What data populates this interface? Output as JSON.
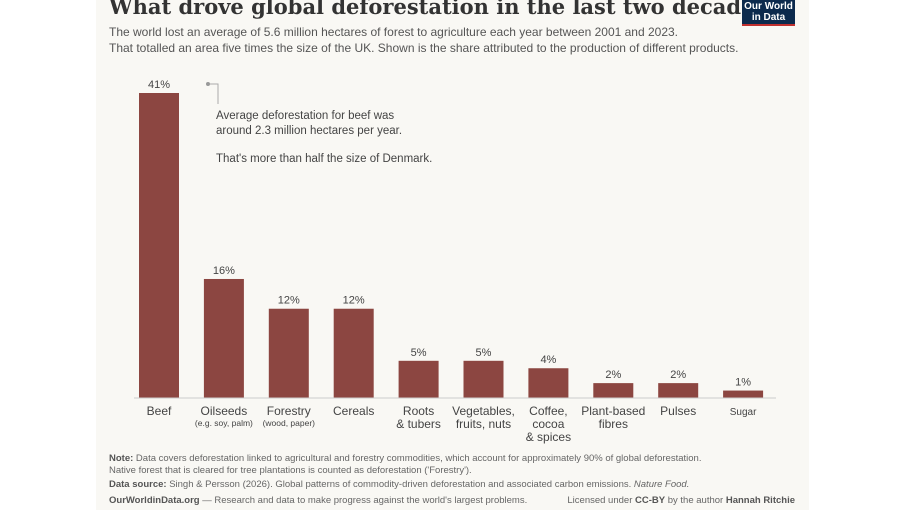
{
  "title": "What drove global deforestation in the last two decades?",
  "subtitle_line1": "The world lost an average of 5.6 million hectares of forest to agriculture each year between 2001 and 2023.",
  "subtitle_line2": "That totalled an area five times the size of the UK. Shown is the share attributed to the production of different products.",
  "logo": {
    "line1": "Our World",
    "line2": "in Data"
  },
  "annotation": {
    "line1": "Average deforestation for beef was",
    "line2": "around 2.3 million hectares per year.",
    "line3": "That's more than half the size of Denmark."
  },
  "chart_data": {
    "type": "bar",
    "title": "What drove global deforestation in the last two decades?",
    "xlabel": "",
    "ylabel": "",
    "ylim": [
      0,
      41
    ],
    "bar_color": "#8c4641",
    "categories": [
      {
        "label": [
          "Beef"
        ],
        "sub": "",
        "value": 41,
        "display": "41%"
      },
      {
        "label": [
          "Oilseeds"
        ],
        "sub": "(e.g. soy, palm)",
        "value": 16,
        "display": "16%"
      },
      {
        "label": [
          "Forestry"
        ],
        "sub": "(wood, paper)",
        "value": 12,
        "display": "12%"
      },
      {
        "label": [
          "Cereals"
        ],
        "sub": "",
        "value": 12,
        "display": "12%"
      },
      {
        "label": [
          "Roots",
          "& tubers"
        ],
        "sub": "",
        "value": 5,
        "display": "5%"
      },
      {
        "label": [
          "Vegetables,",
          "fruits, nuts"
        ],
        "sub": "",
        "value": 5,
        "display": "5%"
      },
      {
        "label": [
          "Coffee,",
          "cocoa",
          "& spices"
        ],
        "sub": "",
        "value": 4,
        "display": "4%"
      },
      {
        "label": [
          "Plant-based",
          "fibres"
        ],
        "sub": "",
        "value": 2,
        "display": "2%"
      },
      {
        "label": [
          "Pulses"
        ],
        "sub": "",
        "value": 2,
        "display": "2%"
      },
      {
        "label": [
          "Sugar"
        ],
        "sub": "",
        "value": 1,
        "display": "1%",
        "small": true
      }
    ]
  },
  "footer": {
    "note_label": "Note:",
    "note_line1": "Data covers deforestation linked to agricultural and forestry commodities, which account for approximately 90% of global deforestation.",
    "note_line2": "Native forest that is cleared for tree plantations is counted as deforestation ('Forestry').",
    "source_label": "Data source:",
    "source_text": "Singh & Persson (2026). Global patterns of commodity-driven deforestation and associated carbon emissions.",
    "source_journal": "Nature Food.",
    "owid_site": "OurWorldinData.org",
    "owid_tagline": "— Research and data to make progress against the world's largest problems.",
    "license_prefix": "Licensed under",
    "license_name": "CC-BY",
    "license_by": "by the author",
    "author": "Hannah Ritchie"
  }
}
